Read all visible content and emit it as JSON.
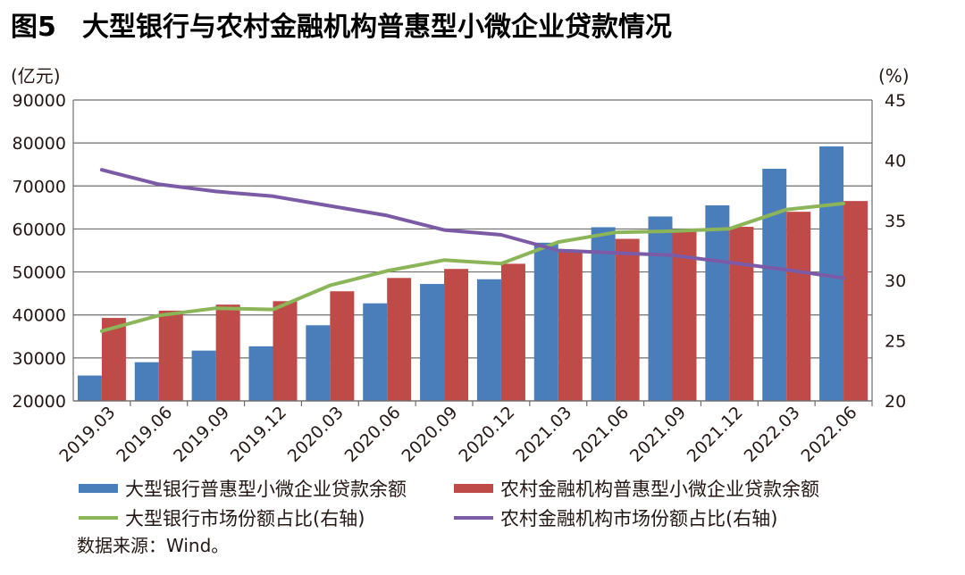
{
  "figure": {
    "label": "图5",
    "title": "大型银行与农村金融机构普惠型小微企业贷款情况",
    "source": "数据来源：Wind。"
  },
  "chart_data": {
    "type": "bar",
    "title": "大型银行与农村金融机构普惠型小微企业贷款情况",
    "categories": [
      "2019.03",
      "2019.06",
      "2019.09",
      "2019.12",
      "2020.03",
      "2020.06",
      "2020.09",
      "2020.12",
      "2021.03",
      "2021.06",
      "2021.09",
      "2021.12",
      "2022.03",
      "2022.06"
    ],
    "left_axis": {
      "unit": "(亿元)",
      "min": 20000,
      "max": 90000,
      "ticks": [
        "20000",
        "30000",
        "40000",
        "50000",
        "60000",
        "70000",
        "80000",
        "90000"
      ]
    },
    "right_axis": {
      "unit": "(%)",
      "min": 20,
      "max": 45,
      "ticks": [
        "20",
        "25",
        "30",
        "35",
        "40",
        "45"
      ]
    },
    "series": [
      {
        "name": "大型银行普惠型小微企业贷款余额",
        "type": "bar",
        "axis": "left",
        "color": "#4a7ebb",
        "values": [
          25900,
          29000,
          31700,
          32700,
          37600,
          42700,
          47200,
          48300,
          56800,
          60400,
          62900,
          65500,
          74000,
          79200
        ]
      },
      {
        "name": "农村金融机构普惠型小微企业贷款余额",
        "type": "bar",
        "axis": "left",
        "color": "#be4b48",
        "values": [
          39300,
          41000,
          42400,
          43200,
          45500,
          48600,
          50700,
          51900,
          55000,
          57700,
          59500,
          60500,
          64000,
          66500
        ]
      },
      {
        "name": "大型银行市场份额占比(右轴)",
        "type": "line",
        "axis": "right",
        "color": "#8cb458",
        "values": [
          25.8,
          27.1,
          27.7,
          27.6,
          29.6,
          30.8,
          31.7,
          31.4,
          33.2,
          34.0,
          34.1,
          34.3,
          35.9,
          36.4
        ]
      },
      {
        "name": "农村金融机构市场份额占比(右轴)",
        "type": "line",
        "axis": "right",
        "color": "#7b5ba6",
        "values": [
          39.2,
          38.0,
          37.4,
          37.0,
          36.2,
          35.4,
          34.2,
          33.8,
          32.5,
          32.3,
          32.1,
          31.5,
          30.9,
          30.2
        ]
      }
    ],
    "grid": "horizontal",
    "legend_placement": "bottom"
  }
}
